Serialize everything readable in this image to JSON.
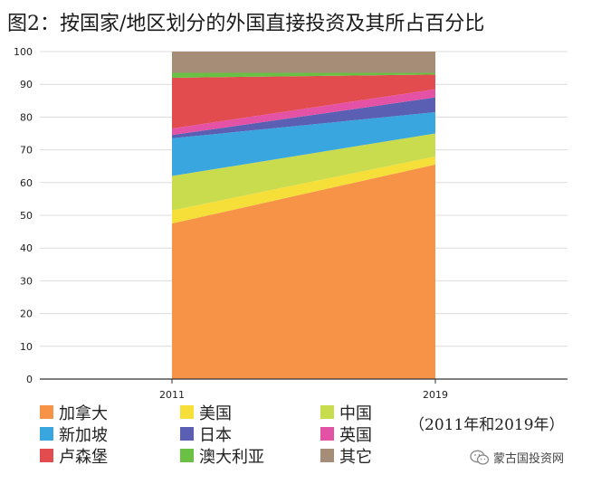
{
  "title": "图2：按国家/地区划分的外国直接投资及其所占百分比",
  "subtitle": "（2011年和2019年）",
  "watermark": "蒙古国投资网",
  "chart_data": {
    "type": "area",
    "stacked": true,
    "x": [
      "2011",
      "2019"
    ],
    "y_ticks": [
      0,
      10,
      20,
      30,
      40,
      50,
      60,
      70,
      80,
      90,
      100
    ],
    "ylim": [
      0,
      100
    ],
    "grid": true,
    "series": [
      {
        "name": "加拿大",
        "color": "#f79346",
        "values": [
          47.5,
          65.5
        ]
      },
      {
        "name": "美国",
        "color": "#f7df3a",
        "values": [
          4.0,
          2.5
        ]
      },
      {
        "name": "中国",
        "color": "#c8dc4e",
        "values": [
          10.5,
          7.0
        ]
      },
      {
        "name": "新加坡",
        "color": "#39a6e0",
        "values": [
          11.5,
          6.5
        ]
      },
      {
        "name": "日本",
        "color": "#5b5fb4",
        "values": [
          1.0,
          4.5
        ]
      },
      {
        "name": "英国",
        "color": "#e452a6",
        "values": [
          2.0,
          2.5
        ]
      },
      {
        "name": "卢森堡",
        "color": "#e24c4f",
        "values": [
          15.5,
          4.5
        ]
      },
      {
        "name": "澳大利亚",
        "color": "#6abf45",
        "values": [
          1.5,
          0.5
        ]
      },
      {
        "name": "其它",
        "color": "#a58d77",
        "values": [
          6.5,
          6.5
        ]
      }
    ]
  },
  "legend": [
    {
      "label": "加拿大",
      "color": "#f79346"
    },
    {
      "label": "美国",
      "color": "#f7df3a"
    },
    {
      "label": "中国",
      "color": "#c8dc4e"
    },
    {
      "label": "新加坡",
      "color": "#39a6e0"
    },
    {
      "label": "日本",
      "color": "#5b5fb4"
    },
    {
      "label": "英国",
      "color": "#e452a6"
    },
    {
      "label": "卢森堡",
      "color": "#e24c4f"
    },
    {
      "label": "澳大利亚",
      "color": "#6abf45"
    },
    {
      "label": "其它",
      "color": "#a58d77"
    }
  ]
}
